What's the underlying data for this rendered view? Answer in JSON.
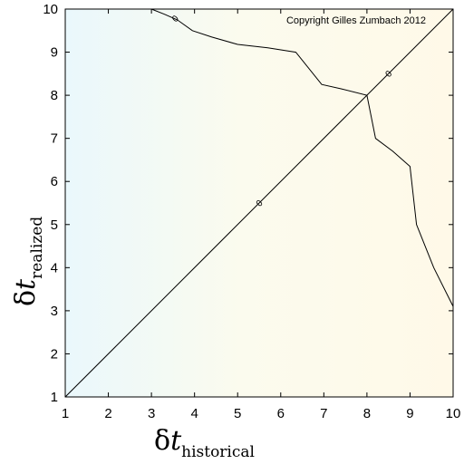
{
  "chart_data": {
    "type": "line",
    "copyright": "Copyright Gilles Zumbach 2012",
    "xlabel": {
      "symbol": "δ",
      "variable": "t",
      "subscript": "historical"
    },
    "ylabel": {
      "symbol": "δ",
      "variable": "t",
      "subscript": "realized"
    },
    "xlim": [
      1,
      10
    ],
    "ylim": [
      1,
      10
    ],
    "xticks": [
      1,
      2,
      3,
      4,
      5,
      6,
      7,
      8,
      9,
      10
    ],
    "yticks": [
      1,
      2,
      3,
      4,
      5,
      6,
      7,
      8,
      9,
      10
    ],
    "grid": false,
    "legend": "none",
    "series": [
      {
        "label": "0",
        "x": [
          3.0,
          3.3,
          3.6,
          3.95,
          4.4,
          5.0,
          5.7,
          6.35,
          6.95,
          7.4,
          8.0,
          8.2,
          8.6,
          9.0,
          9.15,
          9.55,
          10.0
        ],
        "y": [
          10.0,
          9.88,
          9.75,
          9.5,
          9.35,
          9.18,
          9.1,
          9.0,
          8.25,
          8.15,
          8.0,
          7.0,
          6.7,
          6.35,
          5.0,
          4.0,
          3.1
        ]
      },
      {
        "label": "0",
        "x": [
          1,
          10
        ],
        "y": [
          1,
          10
        ]
      }
    ],
    "line_labels": [
      {
        "text": "0",
        "x": 3.55,
        "y": 9.78
      },
      {
        "text": "0",
        "x": 8.5,
        "y": 8.5
      },
      {
        "text": "0",
        "x": 5.5,
        "y": 5.5
      }
    ],
    "colors": {
      "background_left": "#eaf8fc",
      "background_center": "#fbfbee",
      "background_right": "#fff9e8",
      "line": "#000000"
    }
  }
}
